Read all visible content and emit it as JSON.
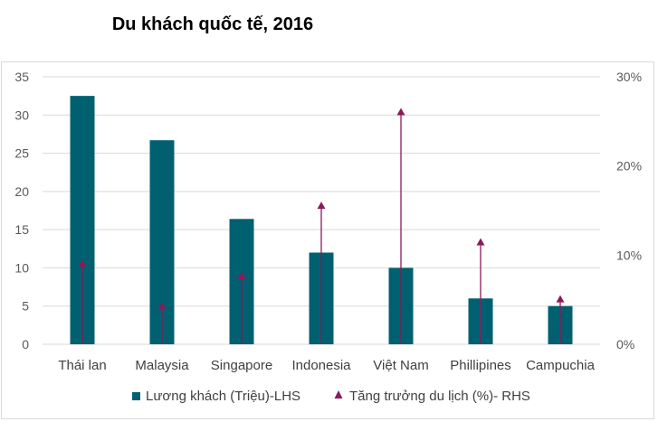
{
  "chart_data": {
    "type": "bar",
    "title": "Du khách quốc tế, 2016",
    "categories": [
      "Thái lan",
      "Malaysia",
      "Singapore",
      "Indonesia",
      "Việt Nam",
      "Phillipines",
      "Campuchia"
    ],
    "series": [
      {
        "name": "Lương khách (Triệu)-LHS",
        "type": "bar",
        "axis": "left",
        "color": "#006070",
        "values": [
          32.5,
          26.7,
          16.4,
          12.0,
          10.0,
          6.0,
          5.0
        ]
      },
      {
        "name": "Tăng trưởng du lịch (%)- RHS",
        "type": "lollipop-triangle",
        "axis": "right",
        "color": "#8b1a5a",
        "values": [
          9.0,
          4.2,
          7.6,
          15.5,
          26.0,
          11.4,
          5.0
        ]
      }
    ],
    "y_left": {
      "min": 0,
      "max": 35,
      "ticks": [
        "0",
        "5",
        "10",
        "15",
        "20",
        "25",
        "30",
        "35"
      ]
    },
    "y_right": {
      "min": 0,
      "max": 30,
      "ticks": [
        "0%",
        "10%",
        "20%",
        "30%"
      ]
    },
    "grid": true,
    "legend": "bottom"
  }
}
